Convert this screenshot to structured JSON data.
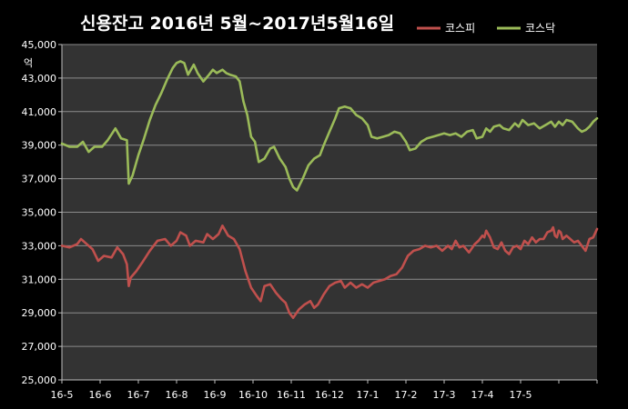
{
  "chart_data": {
    "type": "line",
    "title": "신용잔고 2016년 5월~2017년5월16일",
    "unit_label": "억",
    "xlabel": "",
    "ylabel": "",
    "ylim": [
      25000,
      45000
    ],
    "yticks": [
      25000,
      27000,
      29000,
      31000,
      33000,
      35000,
      37000,
      39000,
      41000,
      43000,
      45000
    ],
    "categories": [
      "16-5",
      "16-6",
      "16-7",
      "16-8",
      "16-9",
      "16-10",
      "16-11",
      "16-12",
      "17-1",
      "17-2",
      "17-3",
      "17-4",
      "17-5"
    ],
    "grid": true,
    "legend_position": "top-right",
    "colors": {
      "kospi": "#c0504d",
      "kosdaq": "#9bbb59",
      "grid": "#8c8c8c",
      "plot_bg": "#333333"
    },
    "series": [
      {
        "name": "코스피",
        "color": "#c0504d",
        "points": [
          [
            0.0,
            33000
          ],
          [
            0.2,
            32900
          ],
          [
            0.4,
            33100
          ],
          [
            0.5,
            33400
          ],
          [
            0.6,
            33200
          ],
          [
            0.8,
            32800
          ],
          [
            0.95,
            32100
          ],
          [
            1.1,
            32400
          ],
          [
            1.3,
            32300
          ],
          [
            1.45,
            32900
          ],
          [
            1.6,
            32500
          ],
          [
            1.7,
            31900
          ],
          [
            1.75,
            30600
          ],
          [
            1.8,
            31100
          ],
          [
            1.95,
            31500
          ],
          [
            2.1,
            32000
          ],
          [
            2.3,
            32700
          ],
          [
            2.5,
            33300
          ],
          [
            2.7,
            33400
          ],
          [
            2.85,
            33000
          ],
          [
            3.0,
            33300
          ],
          [
            3.1,
            33800
          ],
          [
            3.25,
            33600
          ],
          [
            3.35,
            33000
          ],
          [
            3.5,
            33300
          ],
          [
            3.7,
            33200
          ],
          [
            3.8,
            33700
          ],
          [
            3.95,
            33400
          ],
          [
            4.1,
            33700
          ],
          [
            4.2,
            34200
          ],
          [
            4.35,
            33600
          ],
          [
            4.5,
            33400
          ],
          [
            4.65,
            32800
          ],
          [
            4.8,
            31500
          ],
          [
            4.95,
            30500
          ],
          [
            5.1,
            30000
          ],
          [
            5.2,
            29700
          ],
          [
            5.3,
            30600
          ],
          [
            5.45,
            30700
          ],
          [
            5.6,
            30200
          ],
          [
            5.75,
            29800
          ],
          [
            5.85,
            29600
          ],
          [
            5.95,
            29000
          ],
          [
            6.05,
            28700
          ],
          [
            6.2,
            29200
          ],
          [
            6.35,
            29500
          ],
          [
            6.5,
            29700
          ],
          [
            6.6,
            29300
          ],
          [
            6.7,
            29500
          ],
          [
            6.85,
            30100
          ],
          [
            7.0,
            30600
          ],
          [
            7.15,
            30800
          ],
          [
            7.3,
            30900
          ],
          [
            7.4,
            30500
          ],
          [
            7.55,
            30800
          ],
          [
            7.7,
            30500
          ],
          [
            7.85,
            30700
          ],
          [
            8.0,
            30500
          ],
          [
            8.15,
            30800
          ],
          [
            8.3,
            30900
          ],
          [
            8.45,
            31000
          ],
          [
            8.6,
            31200
          ],
          [
            8.75,
            31300
          ],
          [
            8.9,
            31700
          ],
          [
            9.05,
            32400
          ],
          [
            9.2,
            32700
          ],
          [
            9.35,
            32800
          ],
          [
            9.5,
            33000
          ],
          [
            9.65,
            32900
          ],
          [
            9.8,
            33000
          ],
          [
            9.95,
            32700
          ],
          [
            10.1,
            33000
          ],
          [
            10.2,
            32800
          ],
          [
            10.3,
            33300
          ],
          [
            10.4,
            32900
          ],
          [
            10.5,
            33000
          ],
          [
            10.65,
            32600
          ],
          [
            10.8,
            33100
          ],
          [
            10.9,
            33300
          ],
          [
            11.0,
            33600
          ],
          [
            11.05,
            33500
          ],
          [
            11.1,
            33900
          ],
          [
            11.2,
            33500
          ],
          [
            11.3,
            32900
          ],
          [
            11.4,
            32800
          ],
          [
            11.5,
            33200
          ],
          [
            11.6,
            32700
          ],
          [
            11.7,
            32500
          ],
          [
            11.8,
            32900
          ],
          [
            11.9,
            33000
          ],
          [
            12.0,
            32800
          ],
          [
            12.1,
            33300
          ],
          [
            12.2,
            33100
          ],
          [
            12.3,
            33500
          ],
          [
            12.4,
            33200
          ],
          [
            12.5,
            33400
          ],
          [
            12.6,
            33400
          ],
          [
            12.7,
            33800
          ],
          [
            12.8,
            33900
          ],
          [
            12.85,
            34100
          ],
          [
            12.9,
            33600
          ],
          [
            12.95,
            33500
          ],
          [
            13.0,
            33900
          ],
          [
            13.05,
            33800
          ],
          [
            13.1,
            33400
          ],
          [
            13.2,
            33600
          ],
          [
            13.3,
            33400
          ],
          [
            13.4,
            33200
          ],
          [
            13.5,
            33300
          ],
          [
            13.6,
            33000
          ],
          [
            13.7,
            32700
          ],
          [
            13.8,
            33400
          ],
          [
            13.9,
            33500
          ],
          [
            14.0,
            34000
          ]
        ]
      },
      {
        "name": "코스닥",
        "color": "#9bbb59",
        "points": [
          [
            0.0,
            39100
          ],
          [
            0.2,
            38900
          ],
          [
            0.4,
            38900
          ],
          [
            0.55,
            39200
          ],
          [
            0.7,
            38600
          ],
          [
            0.85,
            38900
          ],
          [
            1.05,
            38900
          ],
          [
            1.2,
            39300
          ],
          [
            1.4,
            40000
          ],
          [
            1.55,
            39400
          ],
          [
            1.7,
            39300
          ],
          [
            1.75,
            36700
          ],
          [
            1.85,
            37200
          ],
          [
            2.0,
            38400
          ],
          [
            2.15,
            39400
          ],
          [
            2.3,
            40500
          ],
          [
            2.45,
            41400
          ],
          [
            2.6,
            42100
          ],
          [
            2.75,
            42900
          ],
          [
            2.9,
            43600
          ],
          [
            3.0,
            43900
          ],
          [
            3.1,
            44000
          ],
          [
            3.2,
            43900
          ],
          [
            3.3,
            43200
          ],
          [
            3.4,
            43600
          ],
          [
            3.45,
            43800
          ],
          [
            3.55,
            43300
          ],
          [
            3.7,
            42800
          ],
          [
            3.85,
            43200
          ],
          [
            3.95,
            43500
          ],
          [
            4.05,
            43300
          ],
          [
            4.2,
            43500
          ],
          [
            4.3,
            43300
          ],
          [
            4.4,
            43200
          ],
          [
            4.55,
            43100
          ],
          [
            4.65,
            42800
          ],
          [
            4.75,
            41600
          ],
          [
            4.85,
            40800
          ],
          [
            4.95,
            39500
          ],
          [
            5.05,
            39200
          ],
          [
            5.15,
            38000
          ],
          [
            5.3,
            38200
          ],
          [
            5.45,
            38800
          ],
          [
            5.55,
            38900
          ],
          [
            5.7,
            38200
          ],
          [
            5.85,
            37700
          ],
          [
            5.95,
            37000
          ],
          [
            6.05,
            36500
          ],
          [
            6.15,
            36300
          ],
          [
            6.3,
            37000
          ],
          [
            6.45,
            37800
          ],
          [
            6.6,
            38200
          ],
          [
            6.75,
            38400
          ],
          [
            6.85,
            39000
          ],
          [
            7.0,
            39800
          ],
          [
            7.15,
            40600
          ],
          [
            7.25,
            41200
          ],
          [
            7.4,
            41300
          ],
          [
            7.55,
            41200
          ],
          [
            7.7,
            40800
          ],
          [
            7.85,
            40600
          ],
          [
            8.0,
            40200
          ],
          [
            8.1,
            39500
          ],
          [
            8.25,
            39400
          ],
          [
            8.4,
            39500
          ],
          [
            8.55,
            39600
          ],
          [
            8.7,
            39800
          ],
          [
            8.85,
            39700
          ],
          [
            9.0,
            39200
          ],
          [
            9.1,
            38700
          ],
          [
            9.25,
            38800
          ],
          [
            9.4,
            39200
          ],
          [
            9.55,
            39400
          ],
          [
            9.7,
            39500
          ],
          [
            9.85,
            39600
          ],
          [
            10.0,
            39700
          ],
          [
            10.15,
            39600
          ],
          [
            10.3,
            39700
          ],
          [
            10.45,
            39500
          ],
          [
            10.6,
            39800
          ],
          [
            10.75,
            39900
          ],
          [
            10.85,
            39400
          ],
          [
            11.0,
            39500
          ],
          [
            11.1,
            40000
          ],
          [
            11.2,
            39800
          ],
          [
            11.3,
            40100
          ],
          [
            11.45,
            40200
          ],
          [
            11.55,
            40000
          ],
          [
            11.7,
            39900
          ],
          [
            11.85,
            40300
          ],
          [
            11.95,
            40100
          ],
          [
            12.05,
            40500
          ],
          [
            12.2,
            40200
          ],
          [
            12.35,
            40300
          ],
          [
            12.5,
            40000
          ],
          [
            12.65,
            40200
          ],
          [
            12.8,
            40400
          ],
          [
            12.9,
            40100
          ],
          [
            13.0,
            40400
          ],
          [
            13.1,
            40200
          ],
          [
            13.2,
            40500
          ],
          [
            13.35,
            40400
          ],
          [
            13.5,
            40000
          ],
          [
            13.6,
            39800
          ],
          [
            13.7,
            39900
          ],
          [
            13.8,
            40100
          ],
          [
            13.9,
            40400
          ],
          [
            14.0,
            40600
          ]
        ]
      }
    ]
  }
}
